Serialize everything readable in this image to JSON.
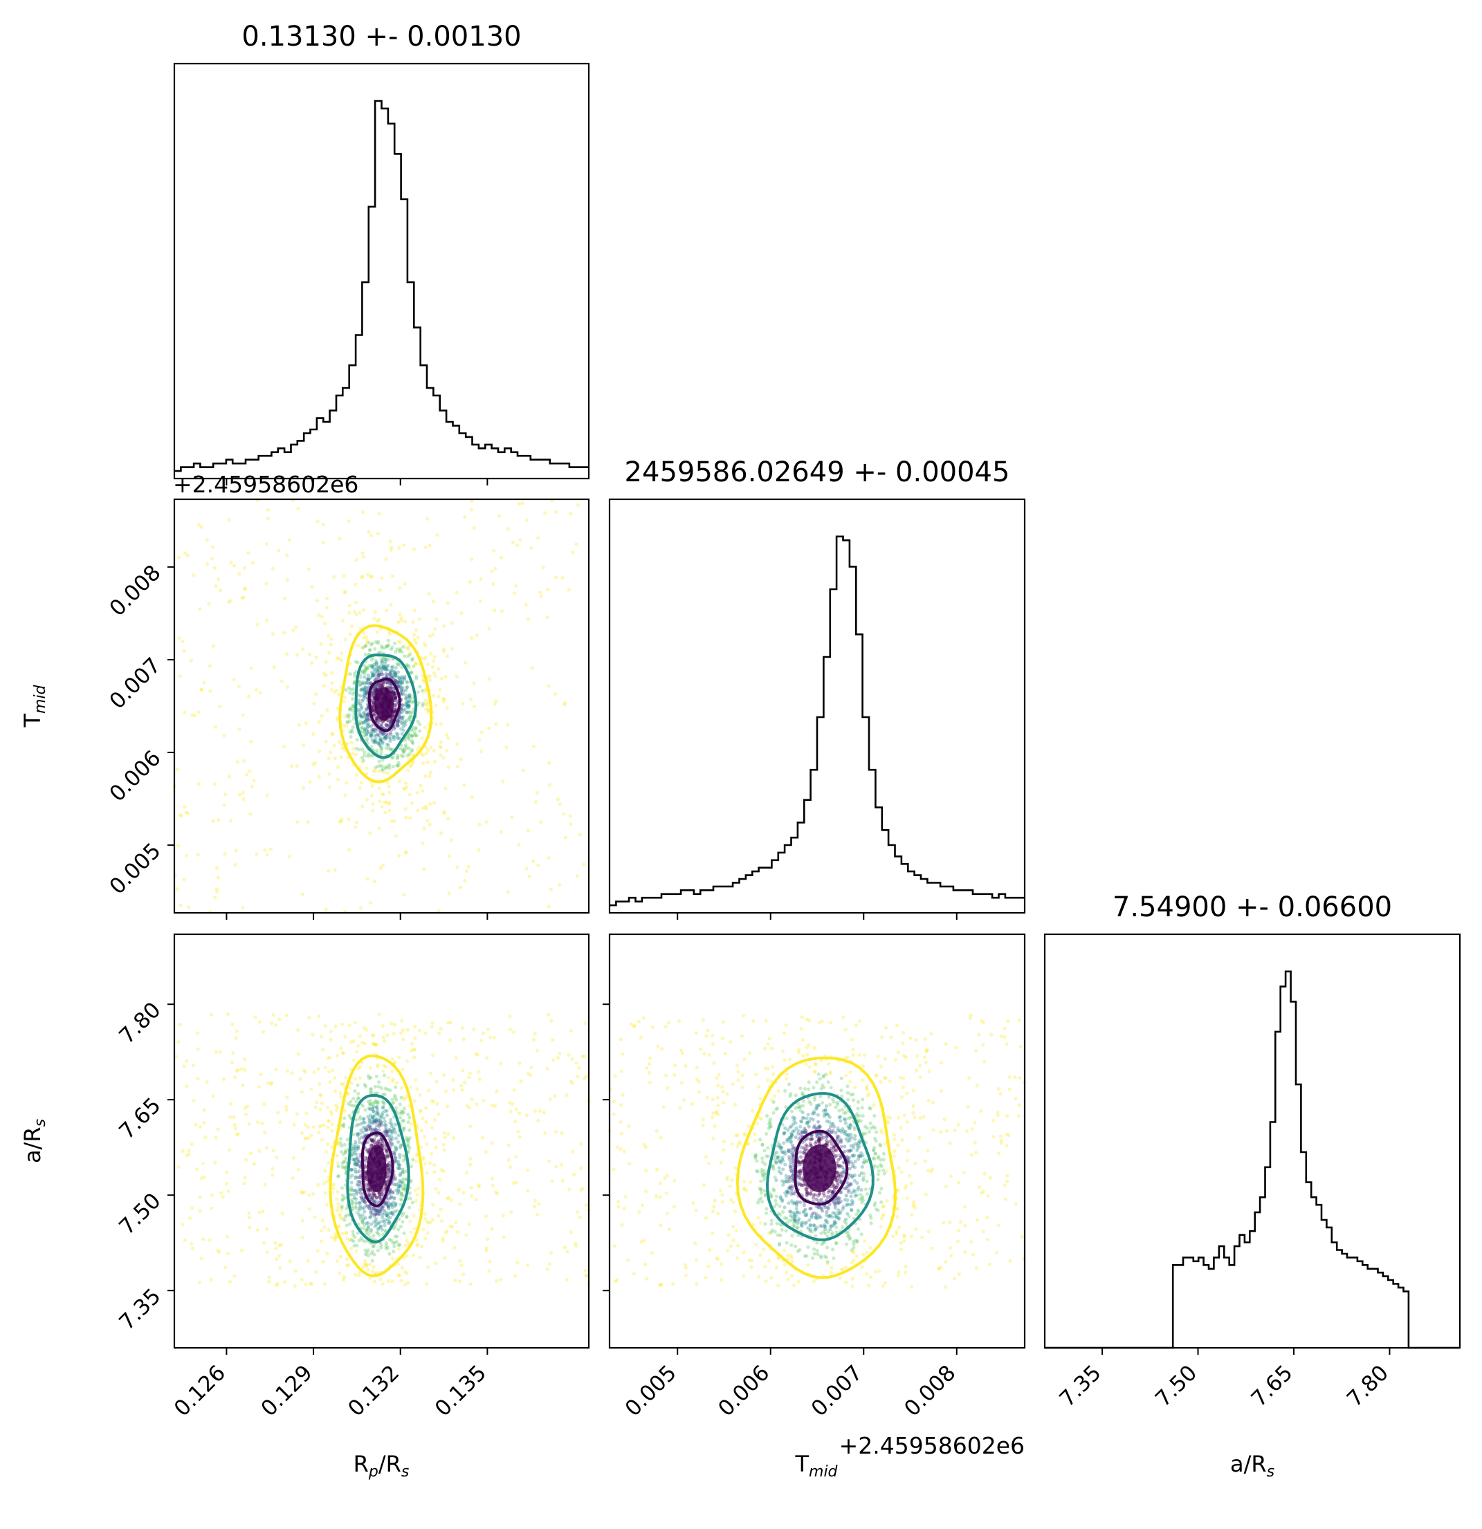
{
  "chart_data": {
    "type": "corner",
    "parameters": [
      {
        "name": "R_p/R_s",
        "label_main": "R",
        "label_sub": "p",
        "label_mid": "/R",
        "label_sub2": "s",
        "title": "0.13130 +- 0.00130",
        "range": [
          0.1242,
          0.1385
        ],
        "ticks": [
          0.126,
          0.129,
          0.132,
          0.135
        ],
        "tick_labels": [
          "0.126",
          "0.129",
          "0.132",
          "0.135"
        ],
        "offset_label": "+2.45958602e6"
      },
      {
        "name": "T_mid",
        "label_main": "T",
        "label_sub": "mid",
        "label_mid": "",
        "label_sub2": "",
        "title": "2459586.02649 +- 0.00045",
        "range": [
          0.00427,
          0.00873
        ],
        "ticks": [
          0.005,
          0.006,
          0.007,
          0.008
        ],
        "tick_labels": [
          "0.005",
          "0.006",
          "0.007",
          "0.008"
        ],
        "offset_label": "+2.45958602e6"
      },
      {
        "name": "a/R_s",
        "label_main": "a/R",
        "label_sub": "s",
        "label_mid": "",
        "label_sub2": "",
        "title": "7.54900 +- 0.06600",
        "range": [
          7.26,
          7.91
        ],
        "ticks": [
          7.35,
          7.5,
          7.65,
          7.8
        ],
        "tick_labels": [
          "7.35",
          "7.50",
          "7.65",
          "7.80"
        ],
        "offset_label": ""
      }
    ],
    "histograms": [
      {
        "parameter": "R_p/R_s",
        "bins": [
          0.1242,
          0.1385
        ],
        "counts": [
          2,
          3,
          3,
          4,
          3,
          3,
          4,
          4,
          5,
          4,
          4,
          5,
          5,
          6,
          6,
          7,
          8,
          7,
          9,
          10,
          12,
          13,
          16,
          15,
          18,
          22,
          24,
          30,
          38,
          52,
          72,
          100,
          98,
          94,
          86,
          74,
          52,
          40,
          30,
          24,
          22,
          18,
          15,
          14,
          12,
          11,
          9,
          8,
          9,
          8,
          7,
          8,
          7,
          6,
          6,
          5,
          5,
          5,
          4,
          4,
          4,
          3,
          3,
          3
        ]
      },
      {
        "parameter": "T_mid",
        "bins": [
          0.00427,
          0.00873
        ],
        "counts": [
          2,
          3,
          3,
          4,
          3,
          4,
          4,
          4,
          5,
          5,
          5,
          6,
          6,
          5,
          6,
          6,
          7,
          7,
          7,
          8,
          9,
          10,
          11,
          12,
          12,
          14,
          16,
          18,
          20,
          24,
          30,
          38,
          52,
          68,
          86,
          100,
          99,
          92,
          74,
          52,
          38,
          28,
          22,
          18,
          15,
          13,
          11,
          10,
          9,
          8,
          8,
          7,
          7,
          6,
          6,
          6,
          5,
          5,
          5,
          4,
          5,
          4,
          4,
          4
        ]
      },
      {
        "parameter": "a/R_s",
        "bins": [
          7.26,
          7.91
        ],
        "counts": [
          0,
          0,
          0,
          0,
          0,
          0,
          0,
          0,
          0,
          0,
          0,
          0,
          0,
          0,
          0,
          0,
          0,
          0,
          0,
          0,
          0,
          0,
          0,
          0,
          0,
          22,
          22,
          24,
          24,
          23,
          24,
          22,
          21,
          24,
          27,
          24,
          22,
          27,
          30,
          28,
          31,
          36,
          40,
          48,
          60,
          84,
          96,
          100,
          92,
          70,
          52,
          44,
          40,
          38,
          34,
          32,
          28,
          26,
          25,
          24,
          24,
          23,
          22,
          21,
          21,
          20,
          19,
          18,
          17,
          16,
          15,
          0,
          0,
          0,
          0,
          0,
          0,
          0,
          0,
          0,
          0
        ]
      }
    ],
    "scatter_2d": [
      {
        "x": "R_p/R_s",
        "y": "T_mid",
        "center": [
          0.13144,
          0.006525
        ],
        "sigma": [
          0.00045,
          0.00024
        ],
        "contour_levels": [
          "inner",
          "middle",
          "outer"
        ]
      },
      {
        "x": "R_p/R_s",
        "y": "a/R_s",
        "center": [
          0.13118,
          7.542
        ],
        "sigma": [
          0.00045,
          0.05
        ],
        "contour_levels": [
          "inner",
          "middle",
          "outer"
        ]
      },
      {
        "x": "T_mid",
        "y": "a/R_s",
        "center": [
          0.006525,
          7.542
        ],
        "sigma": [
          0.00024,
          0.05
        ],
        "contour_levels": [
          "inner",
          "middle",
          "outer"
        ]
      }
    ],
    "contour_colors": [
      "#440154",
      "#21908d",
      "#fde725"
    ],
    "point_colors": [
      "#440154",
      "#3b528b",
      "#21908d",
      "#5ec962",
      "#fde725"
    ],
    "grid": false,
    "legend": "none"
  }
}
